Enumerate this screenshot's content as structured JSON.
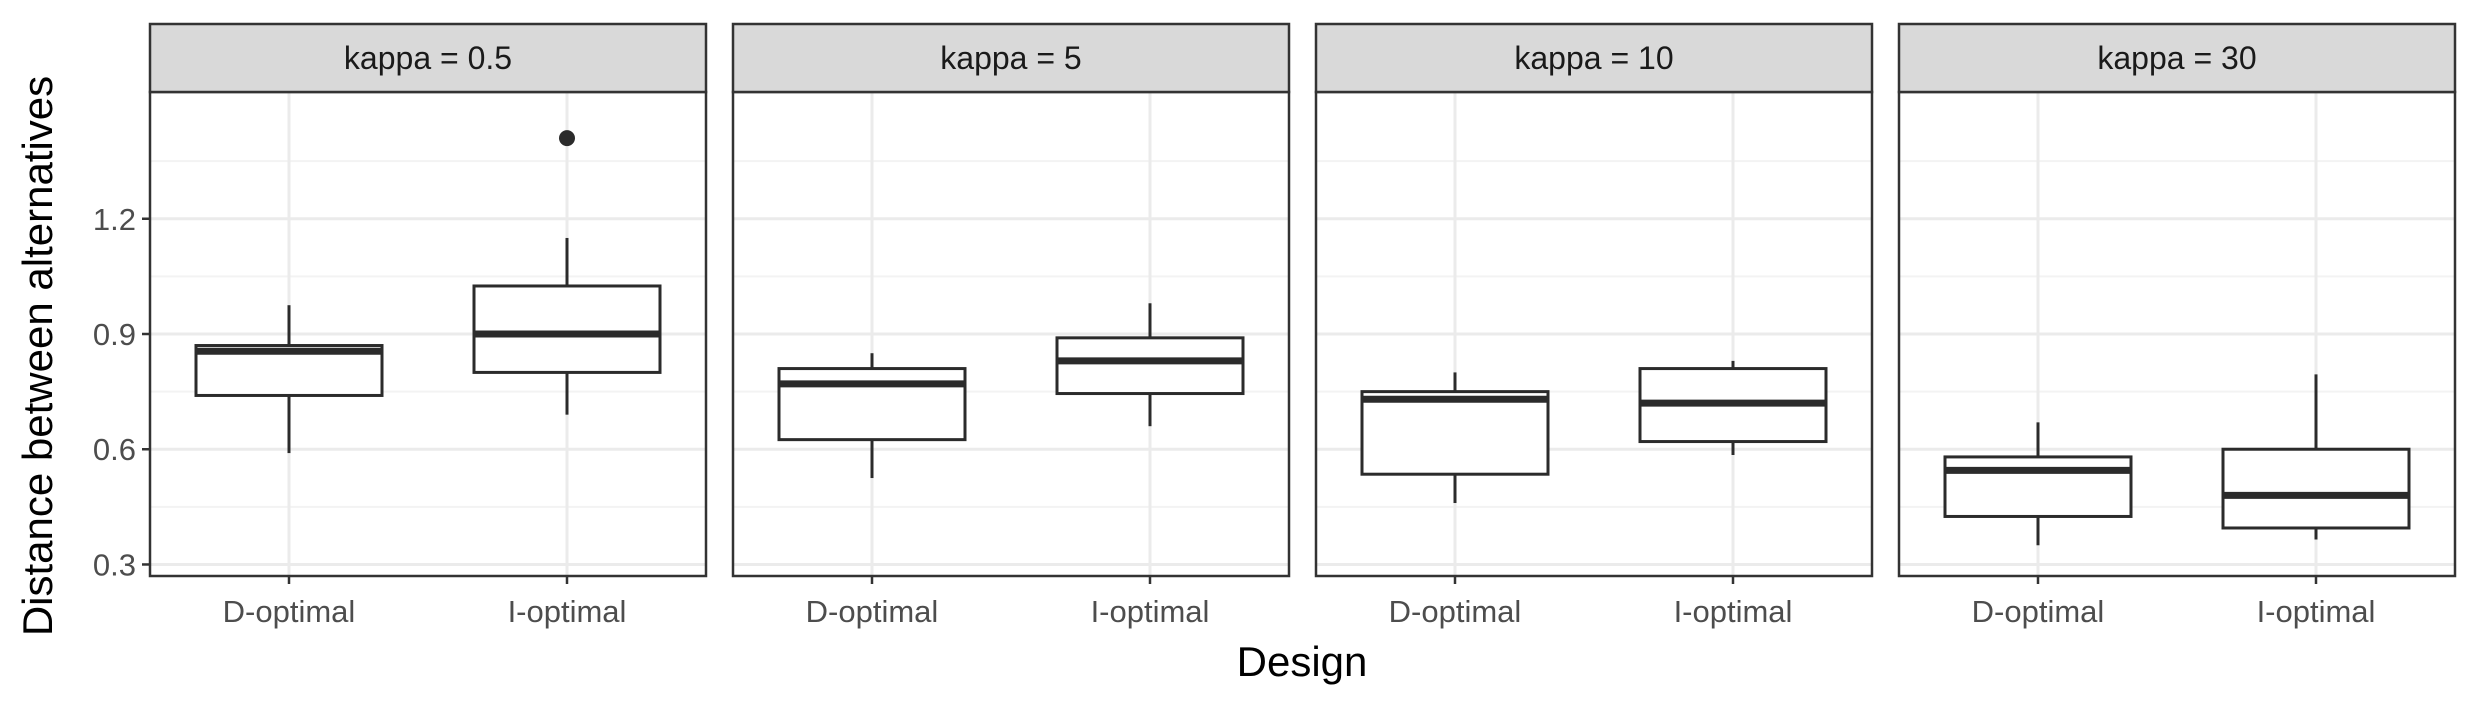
{
  "chart_data": {
    "type": "boxplot",
    "xlabel": "Design",
    "ylabel": "Distance between alternatives",
    "categories": [
      "D-optimal",
      "I-optimal"
    ],
    "ylim": [
      0.27,
      1.53
    ],
    "yticks": [
      0.3,
      0.6,
      0.9,
      1.2
    ],
    "ytick_labels": [
      "0.3",
      "0.6",
      "0.9",
      "1.2"
    ],
    "grid": true,
    "facets": [
      {
        "label": "kappa = 0.5",
        "boxes": [
          {
            "category": "D-optimal",
            "min": 0.59,
            "q1": 0.74,
            "median": 0.855,
            "q3": 0.87,
            "max": 0.975,
            "outliers": []
          },
          {
            "category": "I-optimal",
            "min": 0.69,
            "q1": 0.8,
            "median": 0.9,
            "q3": 1.025,
            "max": 1.15,
            "outliers": [
              1.41
            ]
          }
        ]
      },
      {
        "label": "kappa = 5",
        "boxes": [
          {
            "category": "D-optimal",
            "min": 0.525,
            "q1": 0.625,
            "median": 0.77,
            "q3": 0.81,
            "max": 0.85,
            "outliers": []
          },
          {
            "category": "I-optimal",
            "min": 0.66,
            "q1": 0.745,
            "median": 0.83,
            "q3": 0.89,
            "max": 0.98,
            "outliers": []
          }
        ]
      },
      {
        "label": "kappa = 10",
        "boxes": [
          {
            "category": "D-optimal",
            "min": 0.46,
            "q1": 0.535,
            "median": 0.73,
            "q3": 0.75,
            "max": 0.8,
            "outliers": []
          },
          {
            "category": "I-optimal",
            "min": 0.585,
            "q1": 0.62,
            "median": 0.72,
            "q3": 0.81,
            "max": 0.83,
            "outliers": []
          }
        ]
      },
      {
        "label": "kappa = 30",
        "boxes": [
          {
            "category": "D-optimal",
            "min": 0.35,
            "q1": 0.425,
            "median": 0.545,
            "q3": 0.58,
            "max": 0.67,
            "outliers": []
          },
          {
            "category": "I-optimal",
            "min": 0.365,
            "q1": 0.395,
            "median": 0.48,
            "q3": 0.6,
            "max": 0.795,
            "outliers": []
          }
        ]
      }
    ]
  },
  "colors": {
    "panel_border": "#333333",
    "strip_fill": "#d9d9d9",
    "grid_major": "#ebebeb",
    "grid_minor": "#f3f3f3",
    "box_stroke": "#2b2b2b",
    "box_fill": "#ffffff",
    "tick_text": "#4d4d4d"
  }
}
